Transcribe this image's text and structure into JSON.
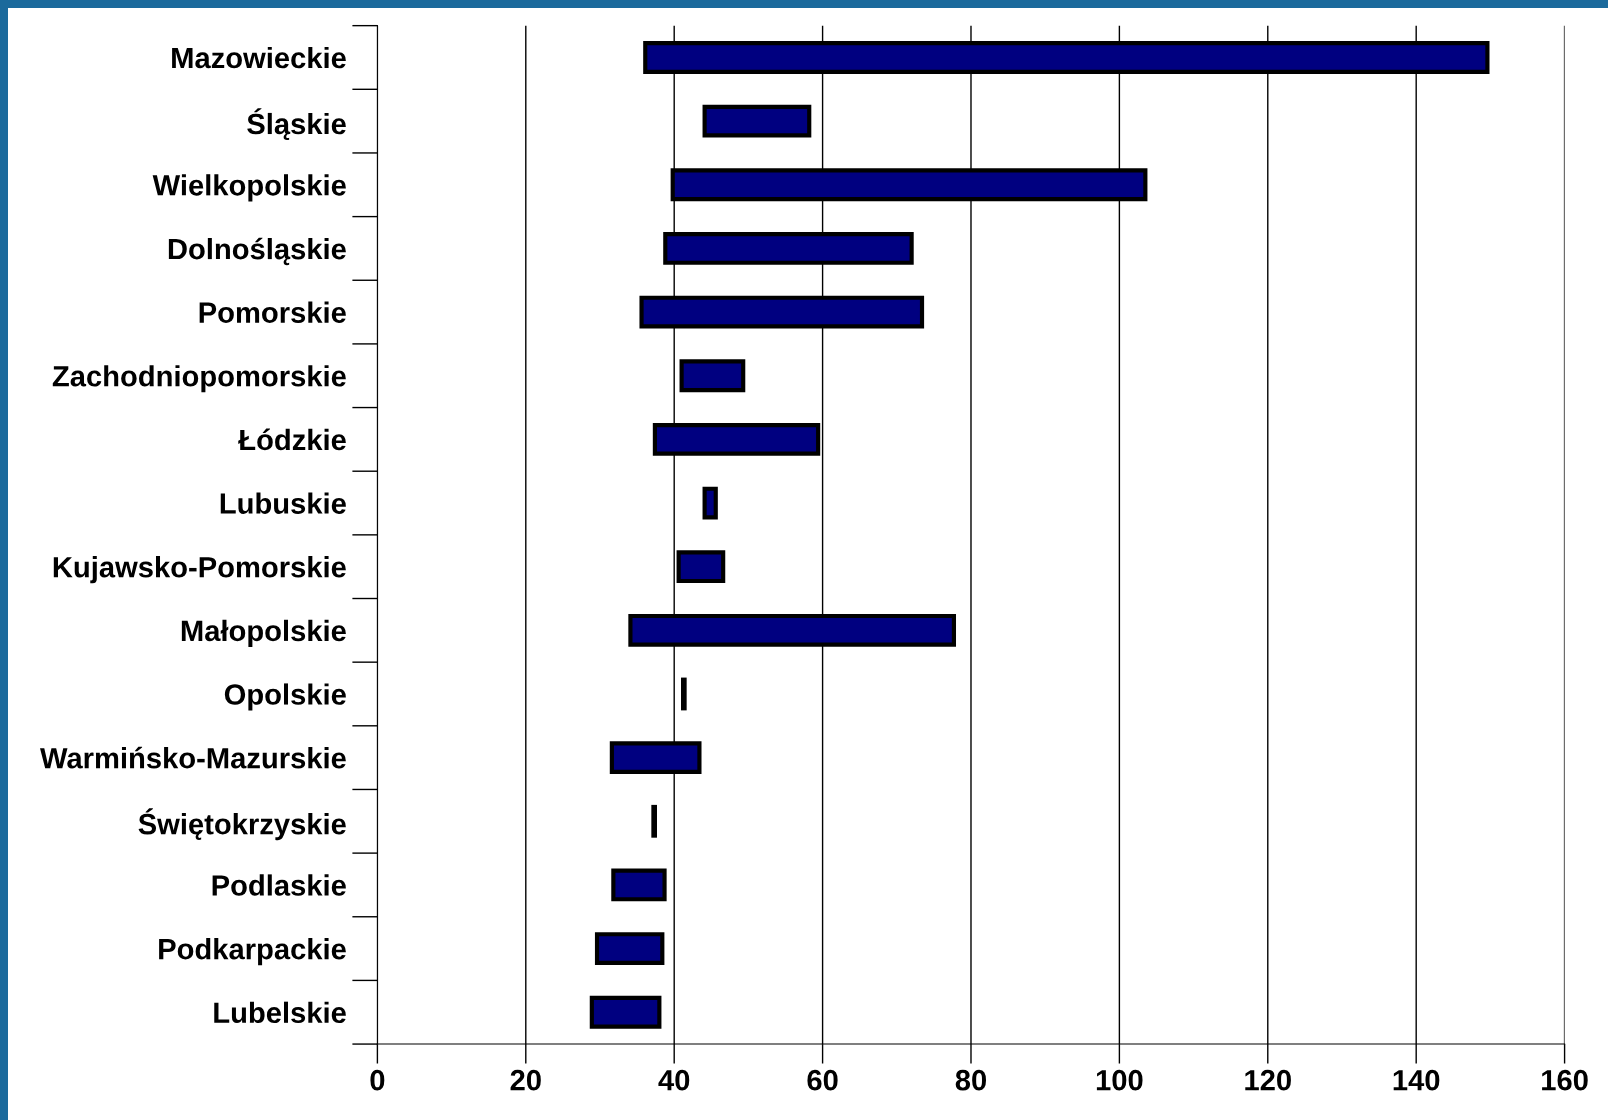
{
  "chart_data": {
    "type": "bar",
    "orientation": "horizontal",
    "categories": [
      "Mazowieckie",
      "Śląskie",
      "Wielkopolskie",
      "Dolnośląskie",
      "Pomorskie",
      "Zachodniopomorskie",
      "Łódzkie",
      "Lubuskie",
      "Kujawsko-Pomorskie",
      "Małopolskie",
      "Opolskie",
      "Warmińsko-Mazurskie",
      "Świętokrzyskie",
      "Podlaskie",
      "Podkarpackie",
      "Lubelskie"
    ],
    "base": [
      36.1,
      44.1,
      39.8,
      38.8,
      35.6,
      41.0,
      37.4,
      44.1,
      40.6,
      34.1,
      41.2,
      31.6,
      37.2,
      31.8,
      29.6,
      28.9
    ],
    "values": [
      113.5,
      14.1,
      63.7,
      33.2,
      37.8,
      8.3,
      22.0,
      1.5,
      6.0,
      43.6,
      0.2,
      11.8,
      0.2,
      6.9,
      8.8,
      9.1
    ],
    "color": "#000080",
    "xlim": [
      0,
      160
    ],
    "xticks": [
      0,
      20,
      40,
      60,
      80,
      100,
      120,
      140,
      160
    ],
    "grid": "x"
  }
}
